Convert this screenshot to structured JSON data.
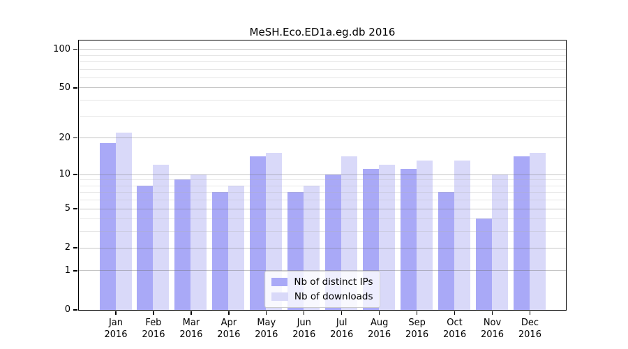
{
  "chart_data": {
    "type": "bar",
    "title": "MeSH.Eco.ED1a.eg.db 2016",
    "x_year": "2016",
    "categories": [
      "Jan",
      "Feb",
      "Mar",
      "Apr",
      "May",
      "Jun",
      "Jul",
      "Aug",
      "Sep",
      "Oct",
      "Nov",
      "Dec"
    ],
    "series": [
      {
        "name": "Nb of distinct IPs",
        "color": "#a9a9f7",
        "values": [
          18,
          8,
          9,
          7,
          14,
          7,
          10,
          11,
          11,
          7,
          4,
          14
        ]
      },
      {
        "name": "Nb of downloads",
        "color": "#d9d9f9",
        "values": [
          22,
          12,
          10,
          8,
          15,
          8,
          14,
          12,
          13,
          13,
          10,
          15
        ]
      }
    ],
    "y_axis": {
      "scale": "log10(value+1)",
      "ticks": [
        0,
        1,
        2,
        5,
        10,
        20,
        50,
        100
      ],
      "minor_ticks": [
        3,
        4,
        6,
        7,
        8,
        9,
        30,
        40,
        60,
        70,
        80,
        90
      ],
      "max": 117
    },
    "xlabel": "",
    "ylabel": "",
    "grid": true,
    "legend_position": "lower center",
    "axis_color": "#000000"
  }
}
